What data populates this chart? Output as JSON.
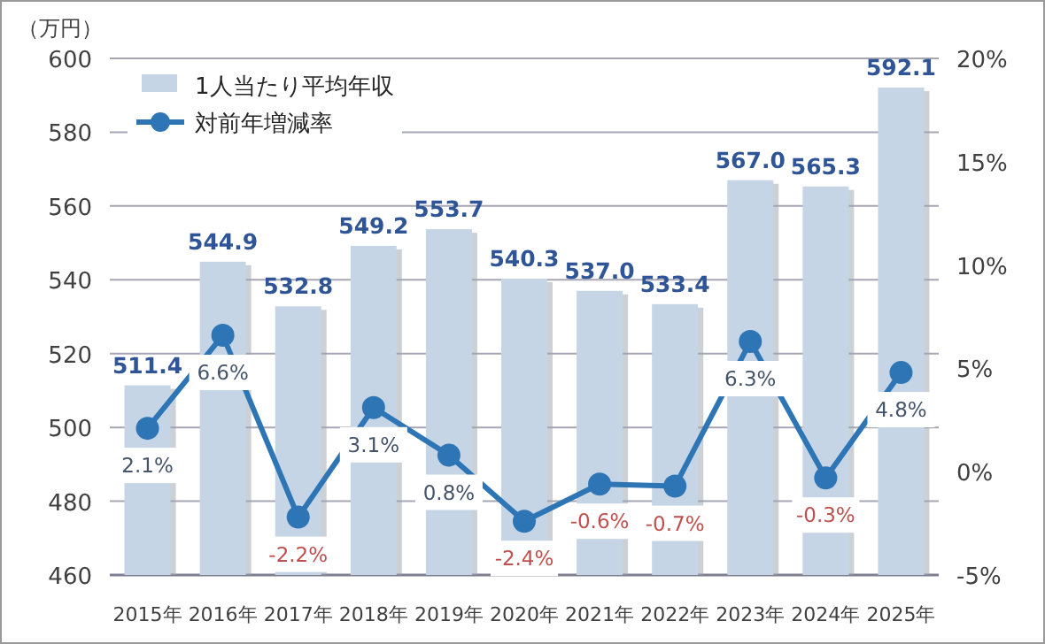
{
  "chart_data": {
    "type": "bar",
    "ylabel": "（万円）",
    "categories": [
      "2015年",
      "2016年",
      "2017年",
      "2018年",
      "2019年",
      "2020年",
      "2021年",
      "2022年",
      "2023年",
      "2024年",
      "2025年"
    ],
    "series": [
      {
        "name": "1人当たり平均年収",
        "color": "#c5d5e6",
        "values": [
          511.4,
          544.9,
          532.8,
          549.2,
          553.7,
          540.3,
          537.0,
          533.4,
          567.0,
          565.3,
          592.1
        ],
        "value_labels": [
          "511.4",
          "544.9",
          "532.8",
          "549.2",
          "553.7",
          "540.3",
          "537.0",
          "533.4",
          "567.0",
          "565.3",
          "592.1"
        ]
      },
      {
        "name": "対前年増減率",
        "type": "line",
        "axis": "y2",
        "color": "#2e75b6",
        "values": [
          2.1,
          6.6,
          -2.2,
          3.1,
          0.8,
          -2.4,
          -0.6,
          -0.7,
          6.3,
          -0.3,
          4.8
        ],
        "value_labels": [
          "2.1%",
          "6.6%",
          "-2.2%",
          "3.1%",
          "0.8%",
          "-2.4%",
          "-0.6%",
          "-0.7%",
          "6.3%",
          "-0.3%",
          "4.8%"
        ]
      }
    ],
    "ylim": [
      460,
      600
    ],
    "yticks": [
      460,
      480,
      500,
      520,
      540,
      560,
      580,
      600
    ],
    "y2lim": [
      -5,
      20
    ],
    "y2ticks": [
      {
        "value": -5,
        "label": "-5%"
      },
      {
        "value": 0,
        "label": "0%"
      },
      {
        "value": 5,
        "label": "5%"
      },
      {
        "value": 10,
        "label": "10%"
      },
      {
        "value": 15,
        "label": "15%"
      },
      {
        "value": 20,
        "label": "20%"
      }
    ],
    "grid": "y",
    "legend": "top left",
    "marker": "circle",
    "line_style": "solid"
  }
}
